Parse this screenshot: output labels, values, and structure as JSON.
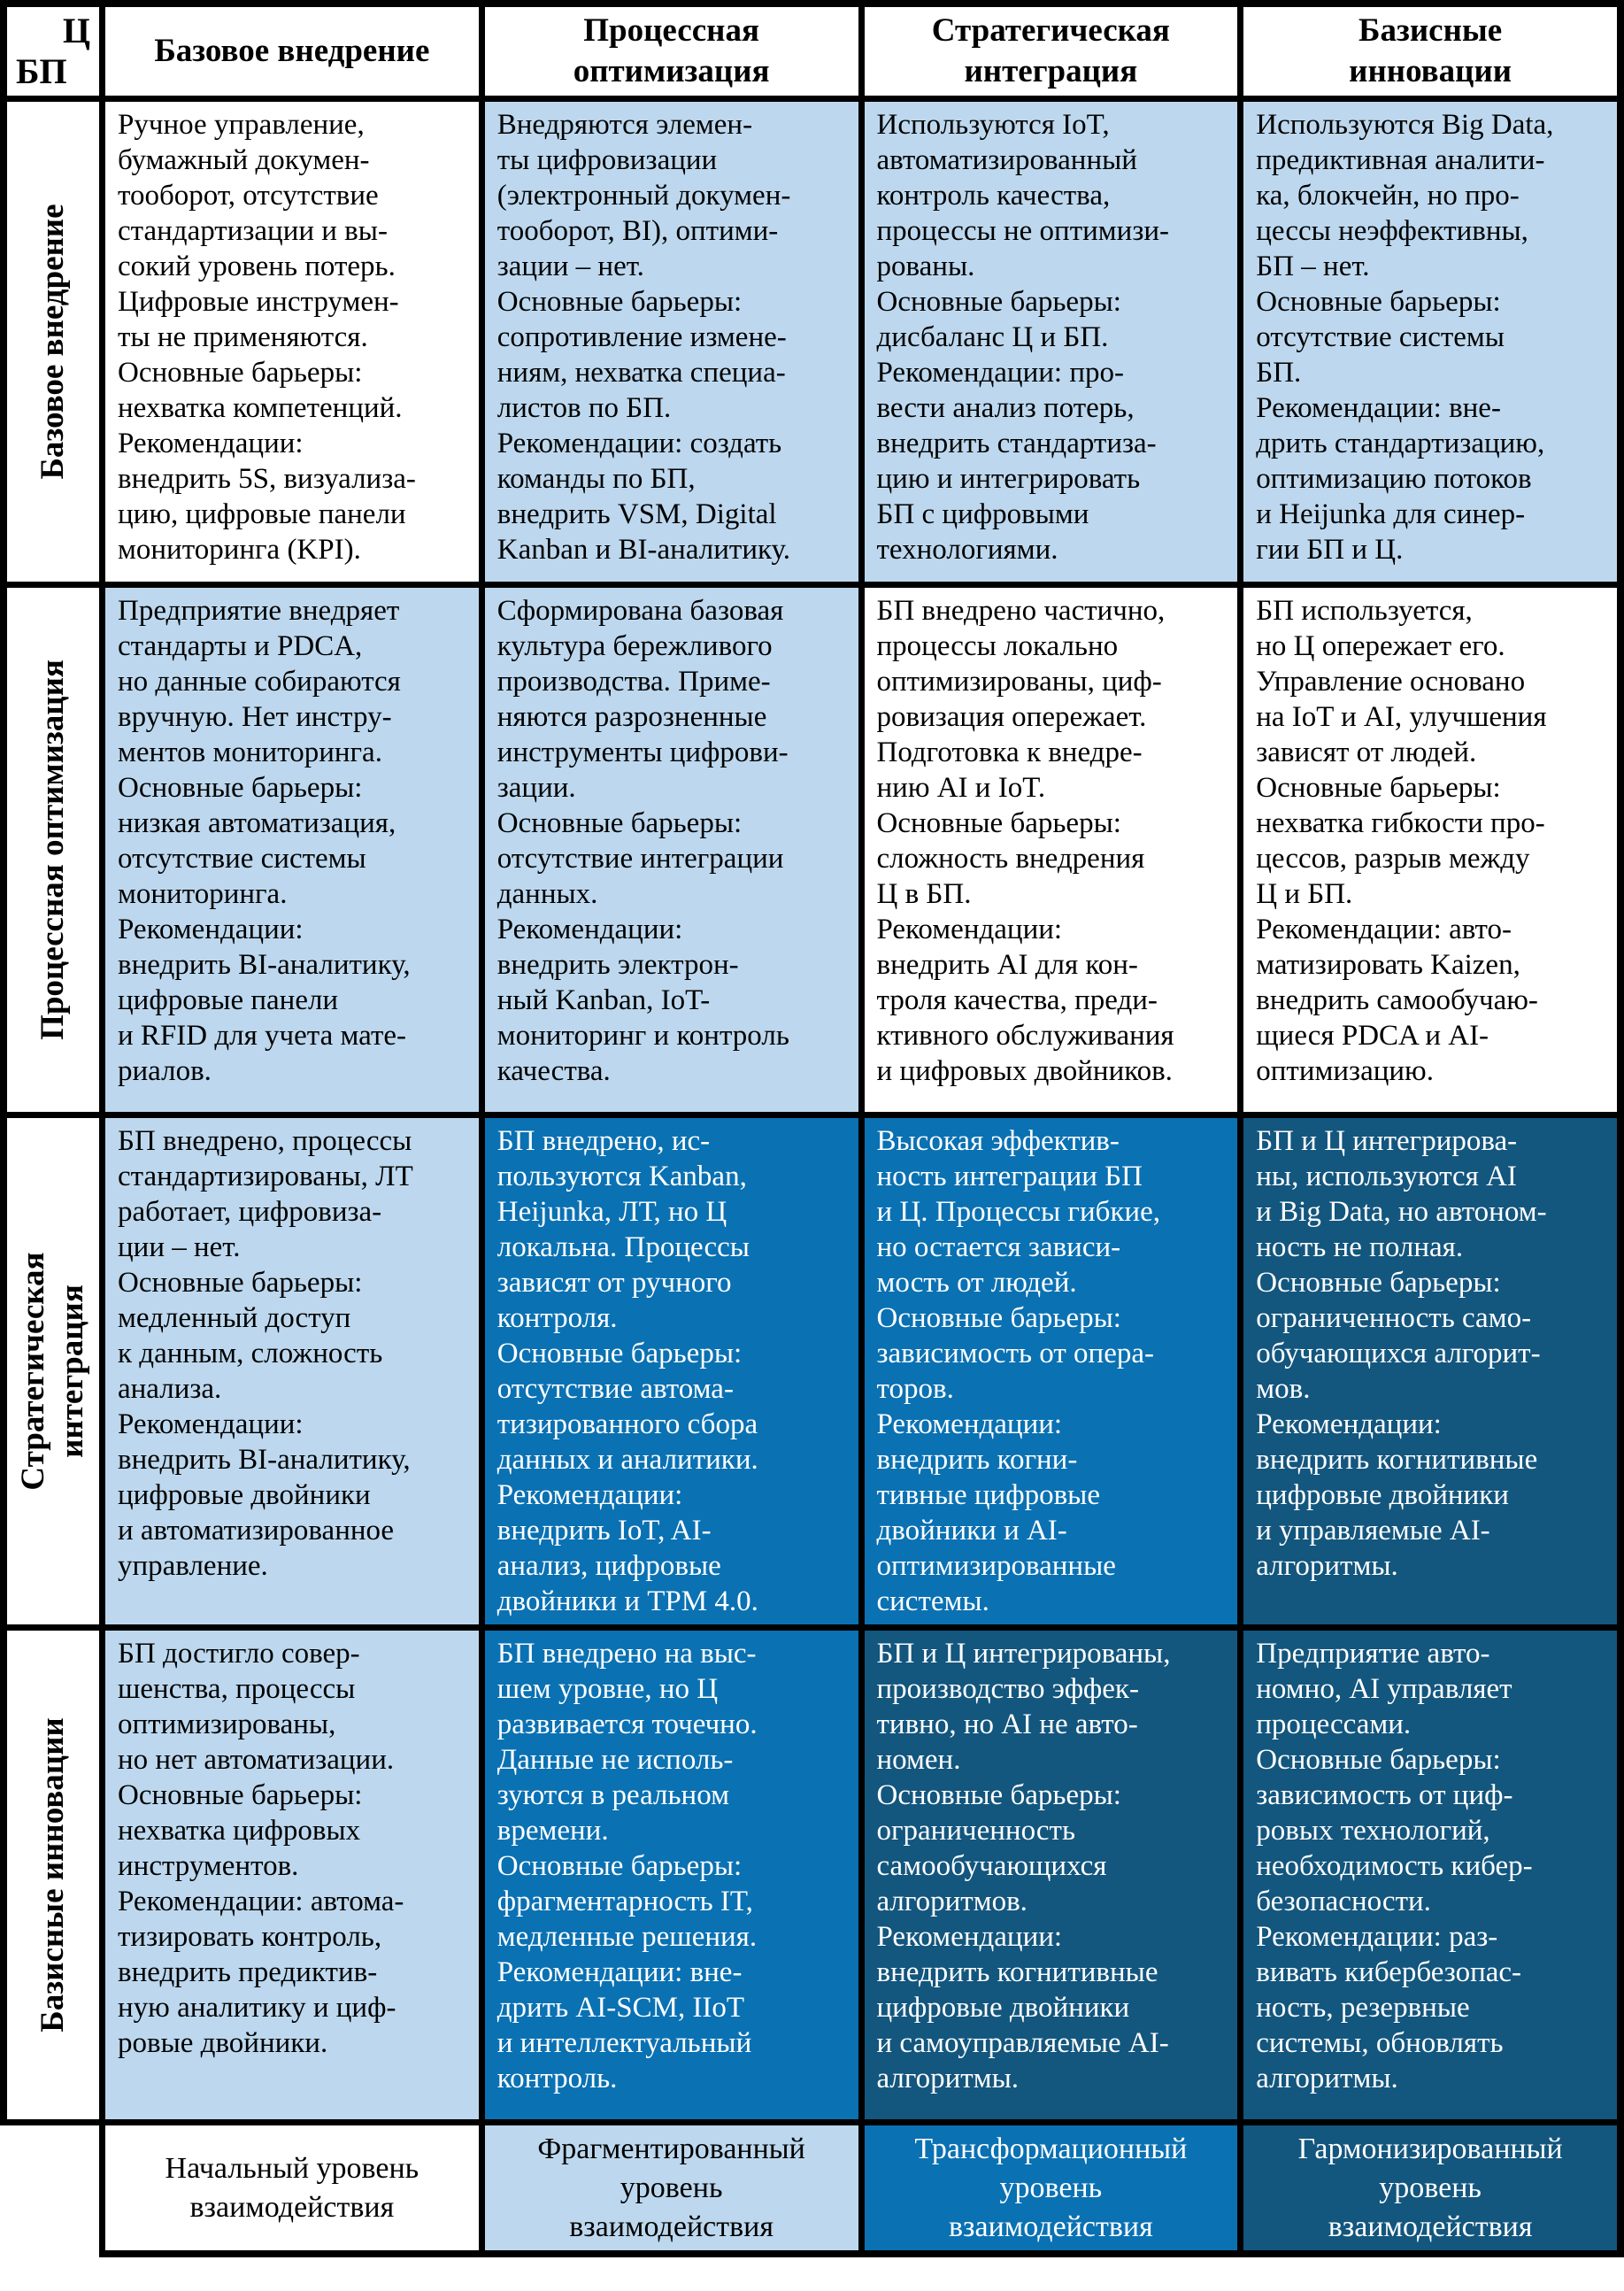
{
  "corner": {
    "top": "Ц",
    "bottom": "БП"
  },
  "col_headers": [
    "Базовое внедрение",
    "Процессная\nоптимизация",
    "Стратегическая\nинтеграция",
    "Базисные\nинновации"
  ],
  "row_headers": [
    "Базовое внедрение",
    "Процессная оптимизация",
    "Стратегическая\nинтеграция",
    "Базисные инновации"
  ],
  "cells": [
    [
      "Ручное управление,\nбумажный докумен-\nтооборот, отсутствие\nстандартизации и вы-\nсокий уровень потерь.\nЦифровые инструмен-\nты не применяются.\nОсновные барьеры:\nнехватка компетенций.\nРекомендации:\nвнедрить 5S, визуализа-\nцию, цифровые панели\nмониторинга (KPI).",
      "Внедряются элемен-\nты цифровизации\n(электронный докумен-\nтооборот, BI), оптими-\nзации – нет.\nОсновные барьеры:\nсопротивление измене-\nниям, нехватка специа-\nлистов по БП.\nРекомендации: создать\nкоманды по БП,\nвнедрить VSM, Digital\nKanban и BI-аналитику.",
      "Используются IoT,\nавтоматизированный\nконтроль качества,\nпроцессы не оптимизи-\nрованы.\nОсновные барьеры:\nдисбаланс Ц и БП.\nРекомендации: про-\nвести анализ потерь,\nвнедрить стандартиза-\nцию и интегрировать\nБП с цифровыми\nтехнологиями.",
      "Используются Big Data,\nпредиктивная аналити-\nка, блокчейн, но про-\nцессы неэффективны,\nБП – нет.\nОсновные барьеры:\nотсутствие системы\nБП.\nРекомендации: вне-\nдрить стандартизацию,\nоптимизацию потоков\nи Heijunka для синер-\nгии БП и Ц."
    ],
    [
      "Предприятие внедряет\nстандарты и PDCA,\nно данные собираются\nвручную. Нет инстру-\nментов мониторинга.\nОсновные барьеры:\nнизкая автоматизация,\nотсутствие системы\nмониторинга.\nРекомендации:\nвнедрить BI-аналитику,\nцифровые панели\nи RFID для учета мате-\nриалов.",
      "Сформирована базовая\nкультура бережливого\nпроизводства. Приме-\nняются разрозненные\nинструменты цифрови-\nзации.\nОсновные барьеры:\nотсутствие интеграции\nданных.\nРекомендации:\nвнедрить электрон-\nный Kanban, IoT-\nмониторинг и контроль\nкачества.",
      "БП внедрено частично,\nпроцессы локально\nоптимизированы, циф-\nровизация опережает.\nПодготовка к внедре-\nнию AI и IoT.\nОсновные барьеры:\nсложность внедрения\nЦ в БП.\nРекомендации:\nвнедрить AI для кон-\nтроля качества, преди-\nктивного обслуживания\nи цифровых двойников.",
      "БП используется,\nно Ц опережает его.\nУправление основано\nна IoT и AI, улучшения\nзависят от людей.\nОсновные барьеры:\nнехватка гибкости про-\nцессов, разрыв между\nЦ и БП.\nРекомендации: авто-\nматизировать Kaizen,\nвнедрить самообучаю-\nщиеся PDCA и AI-\nоптимизацию."
    ],
    [
      "БП внедрено, процессы\nстандартизированы, ЛТ\nработает, цифровиза-\nции – нет.\nОсновные барьеры:\nмедленный доступ\nк данным, сложность\nанализа.\nРекомендации:\nвнедрить BI-аналитику,\nцифровые двойники\nи автоматизированное\nуправление.",
      "БП внедрено, ис-\nпользуются Kanban,\nHeijunka, ЛТ, но Ц\nлокальна. Процессы\nзависят от ручного\nконтроля.\nОсновные барьеры:\nотсутствие автома-\nтизированного сбора\nданных и аналитики.\nРекомендации:\nвнедрить IoT, AI-\nанализ, цифровые\nдвойники и TPM 4.0.",
      "Высокая эффектив-\nность интеграции БП\nи Ц. Процессы гибкие,\nно остается зависи-\nмость от людей.\nОсновные барьеры:\nзависимость от опера-\nторов.\nРекомендации:\nвнедрить когни-\nтивные цифровые\nдвойники и AI-\nоптимизированные\nсистемы.",
      "БП и Ц интегрирова-\nны, используются AI\nи Big Data, но автоном-\nность не полная.\nОсновные барьеры:\nограниченность само-\nобучающихся алгорит-\nмов.\nРекомендации:\nвнедрить когнитивные\nцифровые двойники\nи управляемые AI-\nалгоритмы."
    ],
    [
      "БП достигло совер-\nшенства, процессы\nоптимизированы,\nно нет автоматизации.\nОсновные барьеры:\nнехватка цифровых\nинструментов.\nРекомендации: автома-\nтизировать контроль,\nвнедрить предиктив-\nную аналитику и циф-\nровые двойники.",
      "БП внедрено на выс-\nшем уровне, но Ц\nразвивается точечно.\nДанные не исполь-\nзуются в реальном\nвремени.\nОсновные барьеры:\nфрагментарность IT,\nмедленные решения.\nРекомендации: вне-\nдрить AI-SCM, IIoT\nи интеллектуальный\nконтроль.",
      "БП и Ц интегрированы,\nпроизводство эффек-\nтивно, но AI не авто-\nномен.\nОсновные барьеры:\nограниченность\nсамообучающихся\nалгоритмов.\nРекомендации:\nвнедрить когнитивные\nцифровые двойники\nи самоуправляемые AI-\nалгоритмы.",
      "Предприятие авто-\nномно, AI управляет\nпроцессами.\nОсновные барьеры:\nзависимость от циф-\nровых технологий,\nнеобходимость кибер-\nбезопасности.\nРекомендации: раз-\nвивать кибербезопас-\nность, резервные\nсистемы, обновлять\nалгоритмы."
    ]
  ],
  "footer": [
    "Начальный уровень\nвзаимодействия",
    "Фрагментированный\nуровень\nвзаимодействия",
    "Трансформационный\nуровень\nвзаимодействия",
    "Гармонизированный\nуровень\nвзаимодействия"
  ],
  "colors": {
    "light_blue": "#BDD8EE",
    "medium_blue": "#0A71B3",
    "dark_blue": "#13567E",
    "border_black": "#000000"
  }
}
